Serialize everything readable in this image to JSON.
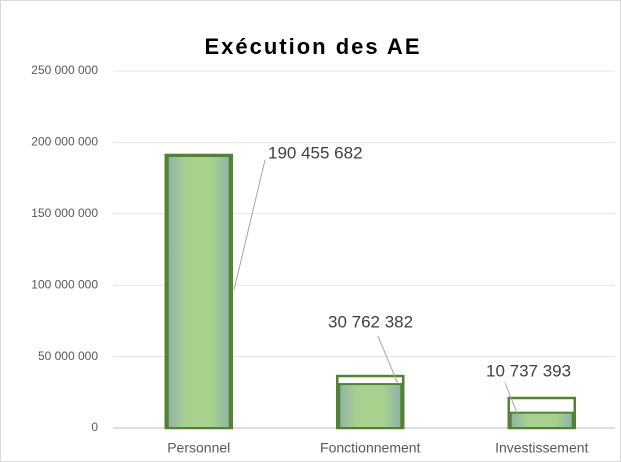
{
  "chart_data": {
    "type": "bar",
    "title": "Exécution des AE",
    "categories": [
      "Personnel",
      "Fonctionnement",
      "Investissement"
    ],
    "series": [
      {
        "color": "#548235",
        "style": "outline",
        "values": [
          191200000,
          36400000,
          21000000
        ]
      },
      {
        "color": "#a9d18e",
        "style": "filled",
        "values": [
          190455682,
          30762382,
          10737393
        ],
        "value_labels": [
          "190 455 682",
          "30 762 382",
          "10 737 393"
        ]
      }
    ],
    "ylim": [
      0,
      250000000
    ],
    "yticks": [
      0,
      {
        "value": 50000000,
        "label": "50 000 000"
      },
      {
        "value": 100000000,
        "label": "100 000 000"
      },
      {
        "value": 150000000,
        "label": "150 000 000"
      },
      {
        "value": 200000000,
        "label": "200 000 000"
      },
      {
        "value": 250000000,
        "label": "250 000 000"
      }
    ],
    "grid": true
  }
}
